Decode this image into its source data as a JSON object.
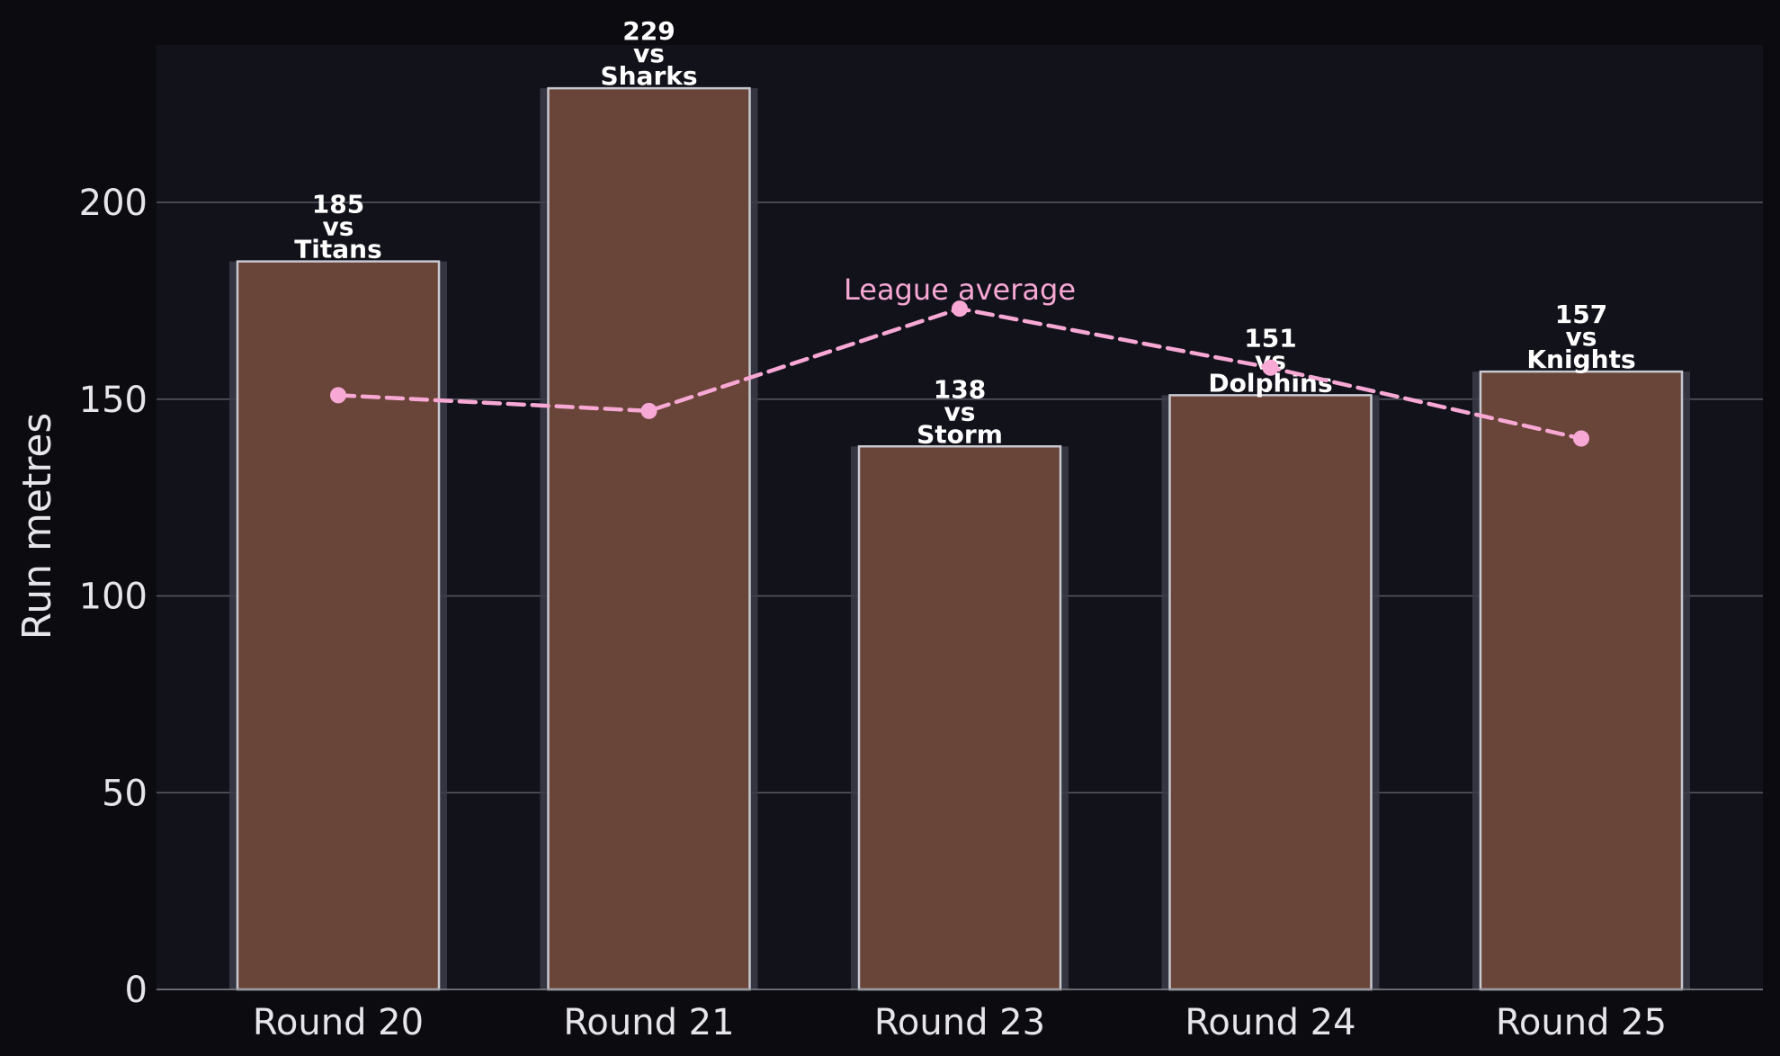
{
  "chart_data": {
    "type": "bar",
    "categories": [
      "Round 20",
      "Round 21",
      "Round 23",
      "Round 24",
      "Round 25"
    ],
    "values": [
      185,
      229,
      138,
      151,
      157
    ],
    "bar_labels": [
      [
        "185",
        "vs",
        "Titans"
      ],
      [
        "229",
        "vs",
        "Sharks"
      ],
      [
        "138",
        "vs",
        "Storm"
      ],
      [
        "151",
        "vs",
        "Dolphins"
      ],
      [
        "157",
        "vs",
        "Knights"
      ]
    ],
    "series": [
      {
        "name": "League average",
        "type": "line",
        "style": "dashed",
        "values": [
          151,
          147,
          173,
          158,
          140
        ]
      }
    ],
    "annotations": [
      {
        "text": "League average",
        "category": "Round 23"
      }
    ],
    "title": "",
    "xlabel": "",
    "ylabel": "Run metres",
    "ylim": [
      0,
      240
    ],
    "yticks": [
      0,
      50,
      100,
      150,
      200
    ],
    "grid": "horizontal",
    "legend": "none"
  },
  "colors": {
    "figure_background": "#0b0b10",
    "plot_background": "#12121b",
    "bar_fill": "#694438",
    "bar_edge": "#c8c8d0",
    "bar_shadow": "#3c3c48",
    "average_line": "#f7a8d4",
    "grid": "#5a5a64",
    "text": "#e6e6ea"
  }
}
